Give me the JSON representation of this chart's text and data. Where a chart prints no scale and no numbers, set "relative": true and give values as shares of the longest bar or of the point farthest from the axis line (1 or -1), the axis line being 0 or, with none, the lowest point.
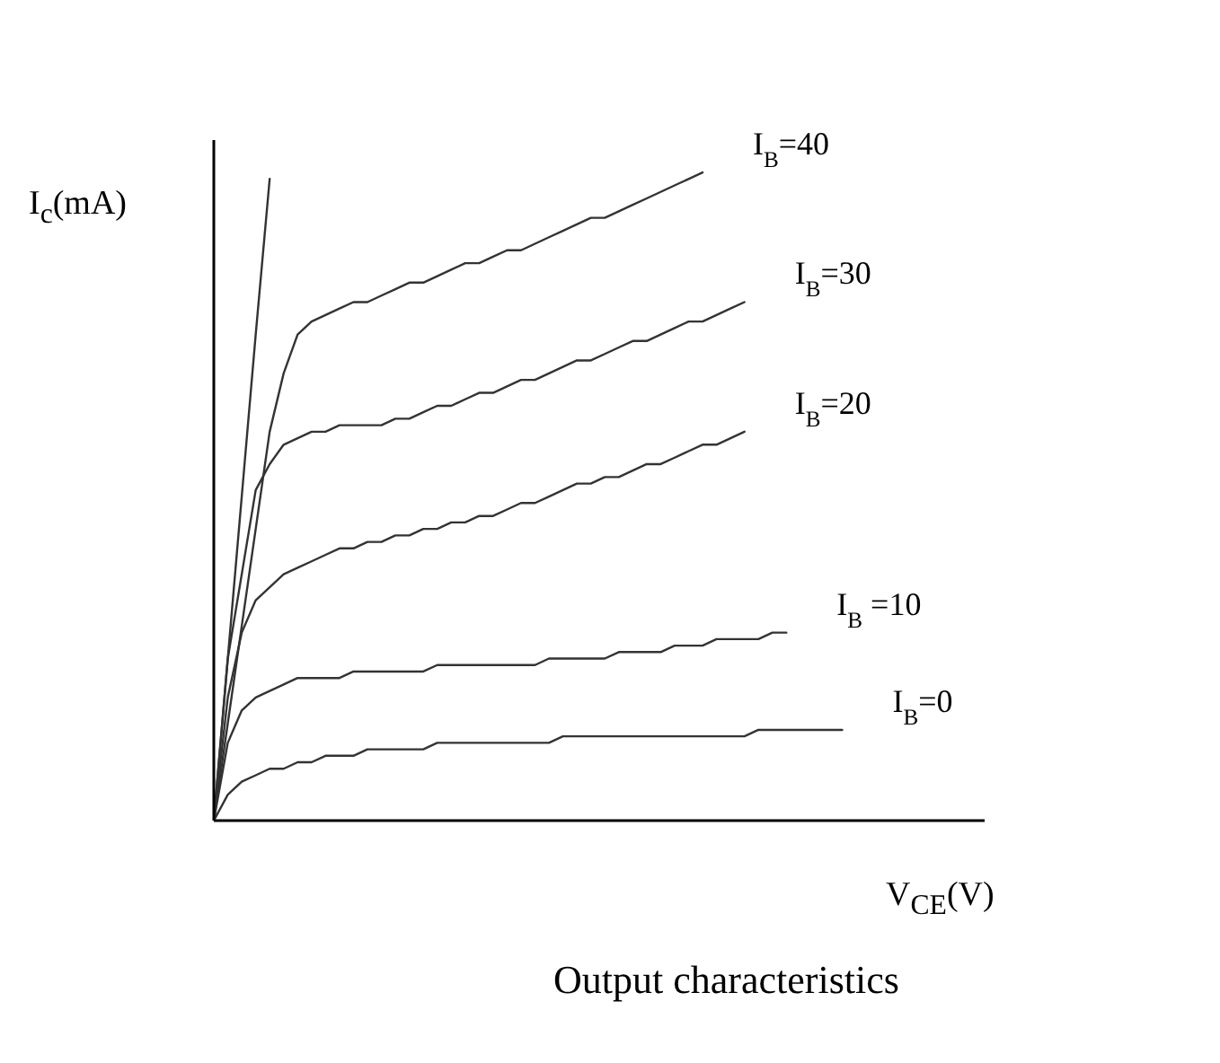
{
  "chart_data": {
    "type": "line",
    "relative": true,
    "title": "Output characteristics",
    "xlabel": "V$_{CE}$(V)",
    "ylabel": "I$_{c}$(mA)",
    "marker": "none",
    "line_style": "solid",
    "categories": [
      null,
      null,
      null,
      null,
      null,
      null,
      null,
      null,
      null,
      null,
      null,
      null,
      null,
      null,
      null,
      null,
      null,
      null,
      null,
      null,
      null,
      null,
      null,
      null,
      null,
      null,
      null,
      null,
      null,
      null,
      null,
      null,
      null,
      null,
      null,
      null,
      null,
      null,
      null,
      null,
      null,
      null,
      null,
      null,
      null,
      null
    ],
    "series": [
      {
        "name": "I$_{B}$=40",
        "color": "#333333",
        "values": [
          0,
          0.15,
          0.3,
          0.45,
          0.6,
          0.69,
          0.75,
          0.77,
          0.78,
          0.79,
          0.8,
          0.8,
          0.81,
          0.82,
          0.83,
          0.83,
          0.84,
          0.85,
          0.86,
          0.86,
          0.87,
          0.88,
          0.88,
          0.89,
          0.9,
          0.91,
          0.92,
          0.93,
          0.93,
          0.94,
          0.95,
          0.96,
          0.97,
          0.98,
          0.99,
          1,
          null,
          null,
          null,
          null,
          null,
          null,
          null,
          null,
          null,
          null
        ]
      },
      {
        "name": "I$_{B}$=30",
        "color": "#333333",
        "values": [
          0,
          0.25,
          0.38,
          0.51,
          0.55,
          0.58,
          0.59,
          0.6,
          0.6,
          0.61,
          0.61,
          0.61,
          0.61,
          0.62,
          0.62,
          0.63,
          0.64,
          0.64,
          0.65,
          0.66,
          0.66,
          0.67,
          0.68,
          0.68,
          0.69,
          0.7,
          0.71,
          0.71,
          0.72,
          0.73,
          0.74,
          0.74,
          0.75,
          0.76,
          0.77,
          0.77,
          0.78,
          0.79,
          0.8,
          null,
          null,
          null,
          null,
          null,
          null,
          null
        ]
      },
      {
        "name": "I$_{B}$=20",
        "color": "#333333",
        "values": [
          0,
          0.19,
          0.29,
          0.34,
          0.36,
          0.38,
          0.39,
          0.4,
          0.41,
          0.42,
          0.42,
          0.43,
          0.43,
          0.44,
          0.44,
          0.45,
          0.45,
          0.46,
          0.46,
          0.47,
          0.47,
          0.48,
          0.49,
          0.49,
          0.5,
          0.51,
          0.52,
          0.52,
          0.53,
          0.53,
          0.54,
          0.55,
          0.55,
          0.56,
          0.57,
          0.58,
          0.58,
          0.59,
          0.6,
          null,
          null,
          null,
          null,
          null,
          null,
          null
        ]
      },
      {
        "name": "I$_{B}$ =10",
        "color": "#333333",
        "values": [
          0,
          0.12,
          0.17,
          0.19,
          0.2,
          0.21,
          0.22,
          0.22,
          0.22,
          0.22,
          0.23,
          0.23,
          0.23,
          0.23,
          0.23,
          0.23,
          0.24,
          0.24,
          0.24,
          0.24,
          0.24,
          0.24,
          0.24,
          0.24,
          0.25,
          0.25,
          0.25,
          0.25,
          0.25,
          0.26,
          0.26,
          0.26,
          0.26,
          0.27,
          0.27,
          0.27,
          0.28,
          0.28,
          0.28,
          0.28,
          0.29,
          0.29,
          null,
          null,
          null,
          null
        ]
      },
      {
        "name": "I$_{B}$=0",
        "color": "#333333",
        "values": [
          0,
          0.04,
          0.06,
          0.07,
          0.08,
          0.08,
          0.09,
          0.09,
          0.1,
          0.1,
          0.1,
          0.11,
          0.11,
          0.11,
          0.11,
          0.11,
          0.12,
          0.12,
          0.12,
          0.12,
          0.12,
          0.12,
          0.12,
          0.12,
          0.12,
          0.13,
          0.13,
          0.13,
          0.13,
          0.13,
          0.13,
          0.13,
          0.13,
          0.13,
          0.13,
          0.13,
          0.13,
          0.13,
          0.13,
          0.14,
          0.14,
          0.14,
          0.14,
          0.14,
          0.14,
          0.14
        ]
      },
      {
        "color": "#333333",
        "values": [
          0,
          0.25,
          0.5,
          0.75,
          0.99,
          null,
          null,
          null,
          null,
          null,
          null,
          null,
          null,
          null,
          null,
          null,
          null,
          null,
          null,
          null,
          null,
          null,
          null,
          null,
          null,
          null,
          null,
          null,
          null,
          null,
          null,
          null,
          null,
          null,
          null,
          null,
          null,
          null,
          null,
          null,
          null,
          null,
          null,
          null,
          null,
          null
        ]
      }
    ]
  }
}
